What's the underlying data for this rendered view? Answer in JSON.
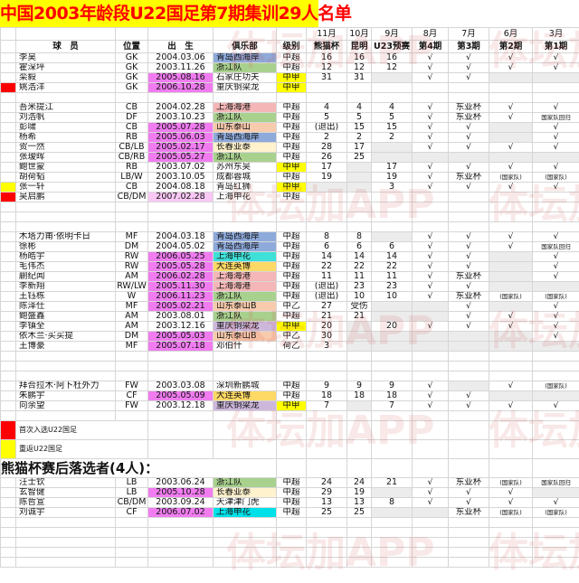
{
  "title": "中国2003年龄段U22国足第7期集训29人名单",
  "watermark": "体坛加APP",
  "colors": {
    "birth_highlight": "#f07cf0",
    "birth_light": "#f9c8f5",
    "level_highlight": "#ffff00",
    "marker_red": "#ff0000",
    "marker_yellow": "#ffff00",
    "clubs": {
      "青岛西海岸": "#8eaadb",
      "浙江队": "#a9d18e",
      "上海海港": "#f4b6b6",
      "山东泰山": "#f8cbad",
      "山东泰山B": "#f8cbad",
      "长春亚泰": "#fff2cc",
      "上海申花": "#3fe0d8",
      "大连英博": "#ffd966",
      "重庆铜梁龙": "#cdb8dc"
    }
  },
  "header": {
    "name": "球　员",
    "pos": "位置",
    "birth": "出　生",
    "club": "俱乐部",
    "level": "级别",
    "months": [
      {
        "month": "11月",
        "event": "熊猫杯"
      },
      {
        "month": "10月",
        "event": "昆明"
      },
      {
        "month": "9月",
        "event": "U23预赛"
      },
      {
        "month": "8月",
        "event": "第4期"
      },
      {
        "month": "7月",
        "event": "第3期"
      },
      {
        "month": "6月",
        "event": "第2期"
      },
      {
        "month": "3月",
        "event": "第1期"
      }
    ]
  },
  "groups": [
    {
      "rows": [
        {
          "name": "李昊",
          "pos": "GK",
          "birth": "2004.03.06",
          "club": "青岛西海岸",
          "level": "中超",
          "m": [
            "16",
            "16",
            "16",
            "√",
            "√",
            "√",
            "√"
          ]
        },
        {
          "name": "霍深坪",
          "pos": "GK",
          "birth": "2003.11.26",
          "club": "浙江队",
          "level": "中超",
          "m": [
            "12",
            "12",
            "12",
            "√",
            "√",
            "√",
            "√"
          ]
        },
        {
          "name": "栾毅",
          "pos": "GK",
          "birth": "2005.08.16",
          "bh": 1,
          "club": "石家庄功夫",
          "level": "中甲",
          "lh": 1,
          "m": [
            "31",
            "31",
            "",
            "√",
            "√",
            "",
            ""
          ]
        },
        {
          "marker": "red",
          "name": "姚浩洋",
          "pos": "GK",
          "birth": "2006.10.28",
          "bh": 1,
          "club": "重庆铜梁龙",
          "noclub": 1,
          "level": "中甲",
          "lh": 1,
          "m": [
            "",
            "",
            "",
            "",
            "",
            "",
            ""
          ]
        }
      ]
    },
    {
      "rows": [
        {
          "name": "吾米提江",
          "pos": "CB",
          "birth": "2004.02.28",
          "club": "上海海港",
          "level": "中超",
          "m": [
            "4",
            "4",
            "4",
            "√",
            "东亚杯",
            "√",
            "√"
          ]
        },
        {
          "name": "刘浩帆",
          "pos": "DF",
          "birth": "2003.10.23",
          "club": "浙江队",
          "level": "中超",
          "m": [
            "5",
            "5",
            "5",
            "√",
            "东亚杯",
            "√",
            "国家队回归"
          ]
        },
        {
          "name": "彭啸",
          "pos": "CB",
          "birth": "2005.07.28",
          "bh": 1,
          "club": "山东泰山",
          "level": "中超",
          "m": [
            "(退出)",
            "15",
            "15",
            "√",
            "√",
            "",
            "√"
          ]
        },
        {
          "name": "杨希",
          "pos": "RB",
          "birth": "2005.06.03",
          "bh": 1,
          "club": "青岛西海岸",
          "level": "中超",
          "m": [
            "2",
            "2",
            "2",
            "√",
            "√",
            "",
            "√"
          ]
        },
        {
          "name": "贺一然",
          "pos": "CB/LB",
          "birth": "2005.02.17",
          "bh": 1,
          "club": "长春亚泰",
          "level": "中超",
          "m": [
            "28",
            "17",
            "",
            "√",
            "√",
            "√",
            "√"
          ]
        },
        {
          "name": "张瑷晖",
          "pos": "CB/RB",
          "birth": "2005.05.27",
          "bh": 1,
          "club": "浙江队",
          "level": "中超",
          "m": [
            "26",
            "25",
            "",
            "",
            "",
            "",
            ""
          ]
        },
        {
          "name": "鲍世蒙",
          "pos": "RB",
          "birth": "2003.07.02",
          "club": "苏州东吴",
          "level": "中甲",
          "lh": 1,
          "m": [
            "17",
            "",
            "17",
            "√",
            "√",
            "√",
            "√"
          ]
        },
        {
          "name": "胡荷韬",
          "pos": "LB/W",
          "birth": "2003.10.05",
          "club": "成都蓉城",
          "level": "中超",
          "m": [
            "19",
            "",
            "19",
            "√",
            "东亚杯",
            "(国家队)",
            "(国家队)"
          ]
        },
        {
          "marker": "yellow",
          "name": "张一轩",
          "pos": "CB",
          "birth": "2004.08.18",
          "club": "青岛红狮",
          "level": "中甲",
          "lh": 1,
          "m": [
            "",
            "",
            "3",
            "√",
            "√",
            "√",
            "√"
          ]
        },
        {
          "marker": "red",
          "name": "吴启鹏",
          "pos": "CB/DM",
          "birth": "2007.02.28",
          "bl": 1,
          "club": "上海申花",
          "noclub": 1,
          "level": "中超",
          "m": [
            "",
            "",
            "",
            "",
            "",
            "",
            ""
          ]
        }
      ]
    },
    {
      "rows": [
        {
          "name": "木塔力甫·依明卡日",
          "pos": "MF",
          "birth": "2004.03.18",
          "club": "青岛西海岸",
          "level": "中超",
          "m": [
            "8",
            "8",
            "",
            "√",
            "√",
            "√",
            "√"
          ]
        },
        {
          "name": "徐彬",
          "pos": "DM",
          "birth": "2004.05.02",
          "club": "青岛西海岸",
          "level": "中超",
          "m": [
            "6",
            "6",
            "6",
            "√",
            "√",
            "√",
            "国家队回归"
          ]
        },
        {
          "name": "杨皓宇",
          "pos": "RW",
          "birth": "2006.05.25",
          "bh": 1,
          "club": "上海申花",
          "level": "中超",
          "m": [
            "14",
            "14",
            "14",
            "√",
            "√",
            "",
            "√"
          ]
        },
        {
          "name": "毛伟杰",
          "pos": "RW",
          "birth": "2005.05.28",
          "bh": 1,
          "club": "大连英博",
          "level": "中超",
          "m": [
            "22",
            "22",
            "22",
            "√",
            "√",
            "",
            "√"
          ]
        },
        {
          "name": "蒯纪闻",
          "pos": "AM",
          "birth": "2006.02.28",
          "bh": 1,
          "club": "上海海港",
          "level": "中超",
          "m": [
            "11",
            "11",
            "11",
            "√",
            "东亚杯",
            "",
            "√"
          ]
        },
        {
          "name": "李新翔",
          "pos": "RW/LW",
          "birth": "2005.11.30",
          "bh": 1,
          "club": "上海海港",
          "level": "中超",
          "m": [
            "(退出)",
            "23",
            "23",
            "√",
            "√",
            "",
            ""
          ]
        },
        {
          "name": "王钰栋",
          "pos": "W",
          "birth": "2006.11.23",
          "bh": 1,
          "club": "浙江队",
          "level": "中超",
          "m": [
            "(退出)",
            "10",
            "10",
            "√",
            "东亚杯",
            "(国家队)",
            "(国家队)"
          ]
        },
        {
          "name": "陈泽仕",
          "pos": "MF",
          "birth": "2005.02.21",
          "bh": 1,
          "club": "山东泰山B",
          "level": "中乙",
          "m": [
            "27",
            "受伤",
            "",
            "",
            "√",
            "",
            "√"
          ]
        },
        {
          "name": "鲍盛鑫",
          "pos": "AM",
          "birth": "2003.08.01",
          "club": "浙江队",
          "level": "中超",
          "m": [
            "21",
            "21",
            "",
            "",
            "√",
            "√",
            "√"
          ]
        },
        {
          "name": "李镇全",
          "pos": "AM",
          "birth": "2003.12.16",
          "club": "重庆铜梁龙",
          "level": "中甲",
          "lh": 1,
          "m": [
            "20",
            "",
            "20",
            "√",
            "√",
            "√",
            "√"
          ]
        },
        {
          "name": "依木兰·买买提",
          "pos": "DM",
          "birth": "2005.05.03",
          "bh": 1,
          "club": "山东泰山B",
          "level": "中乙",
          "m": [
            "30",
            "",
            "",
            "",
            "",
            "",
            "√"
          ]
        },
        {
          "name": "王博豪",
          "pos": "MF",
          "birth": "2005.07.18",
          "bh": 1,
          "club": "邓伯什",
          "level": "荷乙",
          "m": [
            "3",
            "",
            "",
            "",
            "",
            "",
            ""
          ]
        }
      ]
    },
    {
      "rows": [
        {
          "name": "拜合拉木·阿卜杜外力",
          "pos": "FW",
          "birth": "2003.03.08",
          "club": "深圳新鹏城",
          "level": "中超",
          "m": [
            "9",
            "9",
            "9",
            "√",
            "",
            "√",
            "(国家队)"
          ]
        },
        {
          "name": "朱鹏宇",
          "pos": "CF",
          "birth": "2005.05.09",
          "bh": 1,
          "club": "大连英博",
          "level": "中超",
          "m": [
            "18",
            "18",
            "18",
            "√",
            "√",
            "",
            ""
          ]
        },
        {
          "name": "向余望",
          "pos": "FW",
          "birth": "2003.12.18",
          "club": "重庆铜梁龙",
          "level": "中甲",
          "lh": 1,
          "m": [
            "7",
            "",
            "7",
            "√",
            "√",
            "√",
            "√"
          ]
        }
      ]
    }
  ],
  "legend": [
    {
      "marker": "red",
      "text": "首次入选U22国足"
    },
    {
      "marker": "yellow",
      "text": "重返U22国足"
    }
  ],
  "dropped": {
    "title": "熊猫杯赛后落选者(4人)：",
    "rows": [
      {
        "name": "汪士钦",
        "pos": "LB",
        "birth": "2003.06.24",
        "club": "浙江队",
        "level": "中超",
        "m": [
          "24",
          "24",
          "21",
          "√",
          "东亚杯",
          "(国家队)",
          "国家队回归"
        ]
      },
      {
        "name": "玄智健",
        "pos": "LB",
        "birth": "2005.10.28",
        "bh": 1,
        "club": "长春亚泰",
        "level": "中超",
        "m": [
          "29",
          "19",
          "",
          "√",
          "√",
          "√",
          ""
        ]
      },
      {
        "name": "陈哲宣",
        "pos": "CB/DM",
        "birth": "2003.09.24",
        "club": "天津津门虎",
        "level": "中超",
        "m": [
          "13",
          "13",
          "8",
          "√",
          "√",
          "√",
          "√"
        ]
      },
      {
        "name": "刘诚宇",
        "pos": "CF",
        "birth": "2006.07.02",
        "bh": 1,
        "club": "上海申花",
        "level": "中超",
        "m": [
          "25",
          "25",
          "",
          "",
          "东亚杯",
          "(国家队)",
          "(国家队)"
        ]
      }
    ]
  }
}
